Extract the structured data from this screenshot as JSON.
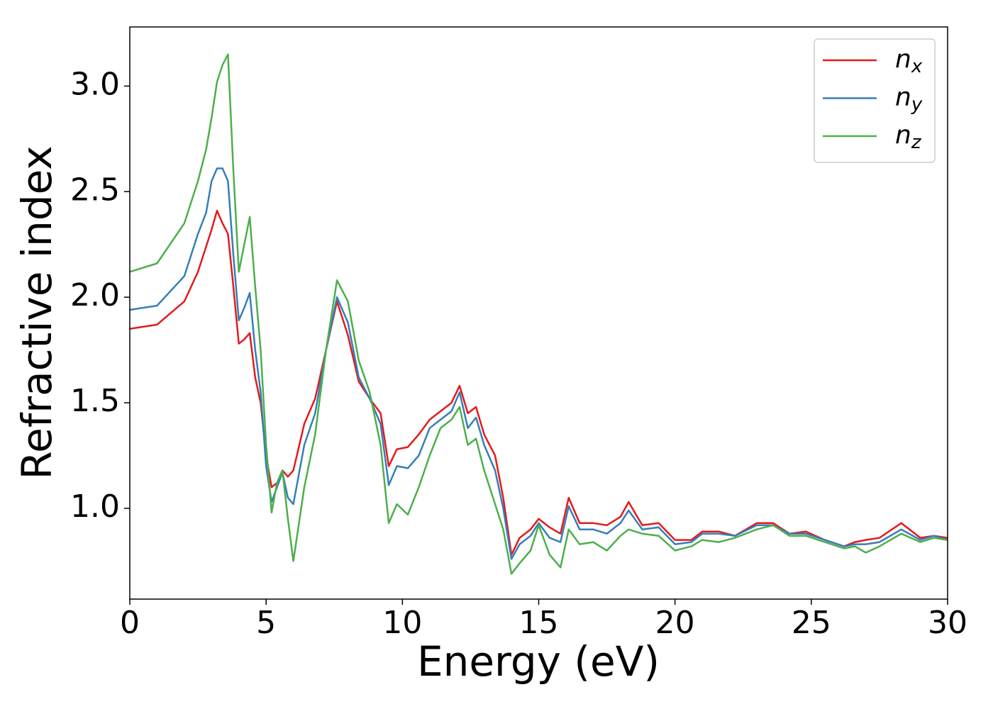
{
  "chart_data": {
    "type": "line",
    "x_label": "Energy (eV)",
    "y_label": "Refractive index",
    "x": [
      0,
      1,
      2,
      2.5,
      2.8,
      3.0,
      3.2,
      3.4,
      3.6,
      3.8,
      4.0,
      4.2,
      4.4,
      4.6,
      4.8,
      5.0,
      5.2,
      5.4,
      5.6,
      5.8,
      6.0,
      6.4,
      6.8,
      7.2,
      7.6,
      8.0,
      8.4,
      8.8,
      9.2,
      9.5,
      9.8,
      10.2,
      10.6,
      11.0,
      11.4,
      11.8,
      12.1,
      12.4,
      12.7,
      13.0,
      13.4,
      13.7,
      14.0,
      14.3,
      14.7,
      15.0,
      15.4,
      15.8,
      16.1,
      16.5,
      17.0,
      17.5,
      18.0,
      18.3,
      18.8,
      19.4,
      20.0,
      20.6,
      21.0,
      21.6,
      22.2,
      23.0,
      23.6,
      24.2,
      24.8,
      25.5,
      26.2,
      26.6,
      27.0,
      27.5,
      28.3,
      29.0,
      29.5,
      30
    ],
    "series": [
      {
        "name": "nx",
        "color": "#e41a1c",
        "values": [
          1.85,
          1.87,
          1.98,
          2.12,
          2.24,
          2.32,
          2.41,
          2.35,
          2.3,
          2.05,
          1.78,
          1.8,
          1.83,
          1.62,
          1.5,
          1.25,
          1.1,
          1.12,
          1.18,
          1.15,
          1.18,
          1.4,
          1.52,
          1.75,
          1.98,
          1.82,
          1.6,
          1.52,
          1.45,
          1.2,
          1.28,
          1.29,
          1.35,
          1.42,
          1.46,
          1.5,
          1.58,
          1.45,
          1.48,
          1.35,
          1.25,
          1.05,
          0.78,
          0.86,
          0.9,
          0.95,
          0.91,
          0.88,
          1.05,
          0.93,
          0.93,
          0.92,
          0.96,
          1.03,
          0.92,
          0.93,
          0.85,
          0.85,
          0.89,
          0.89,
          0.87,
          0.93,
          0.93,
          0.88,
          0.89,
          0.85,
          0.82,
          0.84,
          0.85,
          0.86,
          0.93,
          0.86,
          0.87,
          0.86
        ]
      },
      {
        "name": "ny",
        "color": "#377eb8",
        "values": [
          1.94,
          1.96,
          2.1,
          2.3,
          2.4,
          2.55,
          2.61,
          2.61,
          2.55,
          2.2,
          1.89,
          1.95,
          2.02,
          1.75,
          1.55,
          1.2,
          1.03,
          1.1,
          1.17,
          1.05,
          1.02,
          1.3,
          1.45,
          1.75,
          2.0,
          1.88,
          1.62,
          1.52,
          1.4,
          1.11,
          1.2,
          1.19,
          1.25,
          1.38,
          1.42,
          1.46,
          1.55,
          1.38,
          1.43,
          1.3,
          1.18,
          1.0,
          0.76,
          0.83,
          0.87,
          0.93,
          0.86,
          0.84,
          1.01,
          0.9,
          0.9,
          0.88,
          0.93,
          0.99,
          0.9,
          0.91,
          0.83,
          0.84,
          0.88,
          0.88,
          0.87,
          0.92,
          0.92,
          0.88,
          0.88,
          0.85,
          0.82,
          0.83,
          0.83,
          0.84,
          0.9,
          0.85,
          0.87,
          0.85
        ]
      },
      {
        "name": "nz",
        "color": "#4daf4a",
        "values": [
          2.12,
          2.16,
          2.35,
          2.55,
          2.7,
          2.85,
          3.02,
          3.1,
          3.15,
          2.6,
          2.12,
          2.25,
          2.38,
          2.05,
          1.75,
          1.3,
          0.98,
          1.12,
          1.18,
          0.95,
          0.75,
          1.1,
          1.35,
          1.75,
          2.08,
          1.98,
          1.7,
          1.55,
          1.3,
          0.93,
          1.02,
          0.97,
          1.1,
          1.25,
          1.38,
          1.42,
          1.48,
          1.3,
          1.33,
          1.18,
          1.02,
          0.9,
          0.69,
          0.74,
          0.8,
          0.92,
          0.78,
          0.72,
          0.9,
          0.83,
          0.84,
          0.8,
          0.87,
          0.9,
          0.88,
          0.87,
          0.8,
          0.82,
          0.85,
          0.84,
          0.86,
          0.9,
          0.92,
          0.87,
          0.87,
          0.84,
          0.81,
          0.82,
          0.79,
          0.82,
          0.88,
          0.84,
          0.86,
          0.85
        ]
      }
    ],
    "xlim": [
      0,
      30
    ],
    "ylim": [
      0.57,
      3.28
    ],
    "xticks": [
      0,
      5,
      10,
      15,
      20,
      25,
      30
    ],
    "yticks": [
      {
        "value": 1.0,
        "label": "1.0"
      },
      {
        "value": 1.5,
        "label": "1.5"
      },
      {
        "value": 2.0,
        "label": "2.0"
      },
      {
        "value": 2.5,
        "label": "2.5"
      },
      {
        "value": 3.0,
        "label": "3.0"
      }
    ],
    "legend": "upper right",
    "grid": false
  }
}
